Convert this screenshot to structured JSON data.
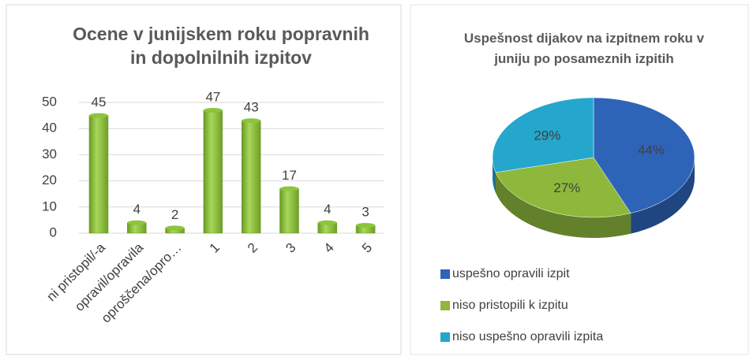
{
  "chart_data": [
    {
      "type": "bar",
      "title": "Ocene v junijskem roku popravnih in dopolnilnih izpitov",
      "categories": [
        "ni pristopil/-a",
        "opravil/opravila",
        "oproščena/opro…",
        "1",
        "2",
        "3",
        "4",
        "5"
      ],
      "values": [
        45,
        4,
        2,
        47,
        43,
        17,
        4,
        3
      ],
      "color": "#8cc43c",
      "ylim": [
        0,
        50
      ],
      "yticks": [
        0,
        10,
        20,
        30,
        40,
        50
      ],
      "grid": true
    },
    {
      "type": "pie",
      "title": "Uspešnost dijakov na izpitnem roku v juniju po  posameznih izpitih",
      "categories": [
        "uspešno opravili izpit",
        "niso pristopili k izpitu",
        "niso uspešno opravili izpita"
      ],
      "values": [
        44,
        27,
        29
      ],
      "value_labels": [
        "44%",
        "27%",
        "29%"
      ],
      "colors": [
        "#2e64b8",
        "#8db83c",
        "#25a6cc"
      ],
      "legend": "bottom"
    }
  ]
}
